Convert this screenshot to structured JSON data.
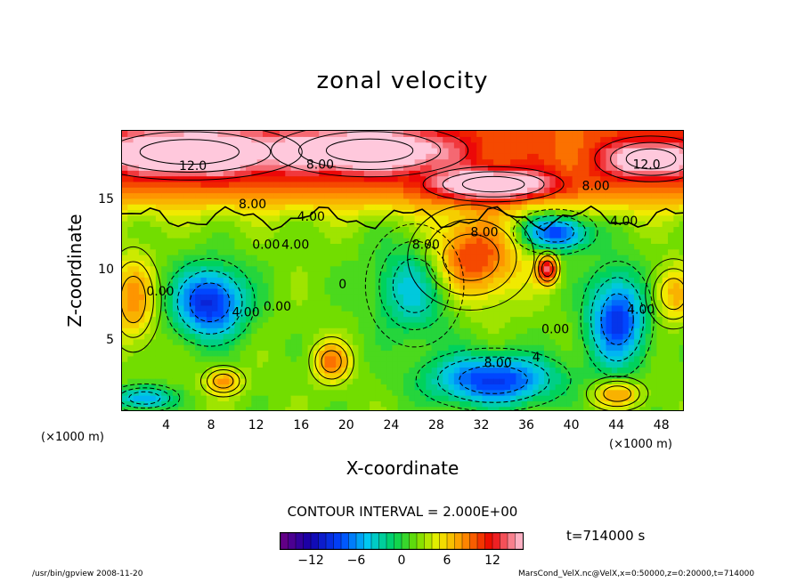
{
  "chart_data": {
    "type": "heatmap",
    "title": "zonal velocity",
    "xlabel": "X-coordinate",
    "ylabel": "Z-coordinate",
    "x_unit": "(×1000 m)",
    "x_ticks": [
      4,
      8,
      12,
      16,
      20,
      24,
      28,
      32,
      36,
      40,
      44,
      48
    ],
    "y_ticks": [
      5,
      10,
      15
    ],
    "xlim": [
      0,
      50
    ],
    "ylim": [
      0,
      20
    ],
    "contour_interval_label": "CONTOUR INTERVAL = 2.000E+00",
    "time_label": "t=714000 s",
    "colorbar": {
      "range": [
        -16,
        16
      ],
      "ticks": [
        "−12",
        "−6",
        "0",
        "6",
        "12"
      ],
      "tick_values": [
        -12,
        -6,
        0,
        6,
        12
      ]
    },
    "contour_labels": [
      {
        "text": "12.0",
        "x": 6.3,
        "y": 17.2
      },
      {
        "text": "8.00",
        "x": 17.6,
        "y": 17.3
      },
      {
        "text": "12.0",
        "x": 46.6,
        "y": 17.3
      },
      {
        "text": "8.00",
        "x": 42.1,
        "y": 15.8
      },
      {
        "text": "8.00",
        "x": 11.6,
        "y": 14.5
      },
      {
        "text": "4.00",
        "x": 16.8,
        "y": 13.6
      },
      {
        "text": "4.00",
        "x": 44.6,
        "y": 13.3
      },
      {
        "text": "8.00",
        "x": 32.2,
        "y": 12.5
      },
      {
        "text": "0.00",
        "x": 12.8,
        "y": 11.6
      },
      {
        "text": "4.00",
        "x": 15.4,
        "y": 11.6
      },
      {
        "text": "8.00",
        "x": 27.0,
        "y": 11.6
      },
      {
        "text": "0.00",
        "x": 3.4,
        "y": 8.3
      },
      {
        "text": "4.00",
        "x": 11.0,
        "y": 6.8
      },
      {
        "text": "0.00",
        "x": 13.8,
        "y": 7.2
      },
      {
        "text": "0",
        "x": 19.6,
        "y": 8.8
      },
      {
        "text": "4.00",
        "x": 46.1,
        "y": 7.0
      },
      {
        "text": "0.00",
        "x": 38.5,
        "y": 5.6
      },
      {
        "text": "8.00",
        "x": 33.4,
        "y": 3.2
      },
      {
        "text": "4",
        "x": 36.8,
        "y": 3.6
      }
    ],
    "features": [
      {
        "value": 14,
        "x": 6,
        "y": 18.5,
        "rx": 8,
        "ry": 1.6
      },
      {
        "value": 14,
        "x": 22,
        "y": 18.6,
        "rx": 7,
        "ry": 1.5
      },
      {
        "value": 14,
        "x": 33,
        "y": 16.2,
        "rx": 5,
        "ry": 1.0
      },
      {
        "value": 12,
        "x": 47,
        "y": 18.0,
        "rx": 4,
        "ry": 1.3
      },
      {
        "value": 11,
        "x": 31,
        "y": 11.0,
        "rx": 4.5,
        "ry": 3.0
      },
      {
        "value": 13,
        "x": 37.8,
        "y": 10.2,
        "rx": 0.9,
        "ry": 1.0
      },
      {
        "value": -9,
        "x": 38.5,
        "y": 12.8,
        "rx": 3.0,
        "ry": 1.3
      },
      {
        "value": -10,
        "x": 7.8,
        "y": 7.8,
        "rx": 3.2,
        "ry": 2.5
      },
      {
        "value": -9,
        "x": 44.0,
        "y": 6.6,
        "rx": 2.6,
        "ry": 3.3
      },
      {
        "value": -9,
        "x": 33.0,
        "y": 2.3,
        "rx": 5.5,
        "ry": 1.8
      },
      {
        "value": 9,
        "x": 18.6,
        "y": 3.6,
        "rx": 1.6,
        "ry": 1.4
      },
      {
        "value": 8,
        "x": 9.0,
        "y": 2.2,
        "rx": 1.6,
        "ry": 0.9
      },
      {
        "value": 8,
        "x": 1.0,
        "y": 8.0,
        "rx": 2.0,
        "ry": 3.0
      },
      {
        "value": 7,
        "x": 49.0,
        "y": 8.4,
        "rx": 2.0,
        "ry": 2.0
      },
      {
        "value": 8,
        "x": 44.0,
        "y": 1.3,
        "rx": 2.2,
        "ry": 1.0
      },
      {
        "value": -6,
        "x": 2.0,
        "y": 1.0,
        "rx": 2.5,
        "ry": 0.8
      },
      {
        "value": -5,
        "x": 26.0,
        "y": 9.0,
        "rx": 3.5,
        "ry": 3.5
      }
    ]
  },
  "footer": {
    "left": "/usr/bin/gpview  2008-11-20",
    "right": "MarsCond_VelX.nc@VelX,x=0:50000,z=0:20000,t=714000"
  }
}
